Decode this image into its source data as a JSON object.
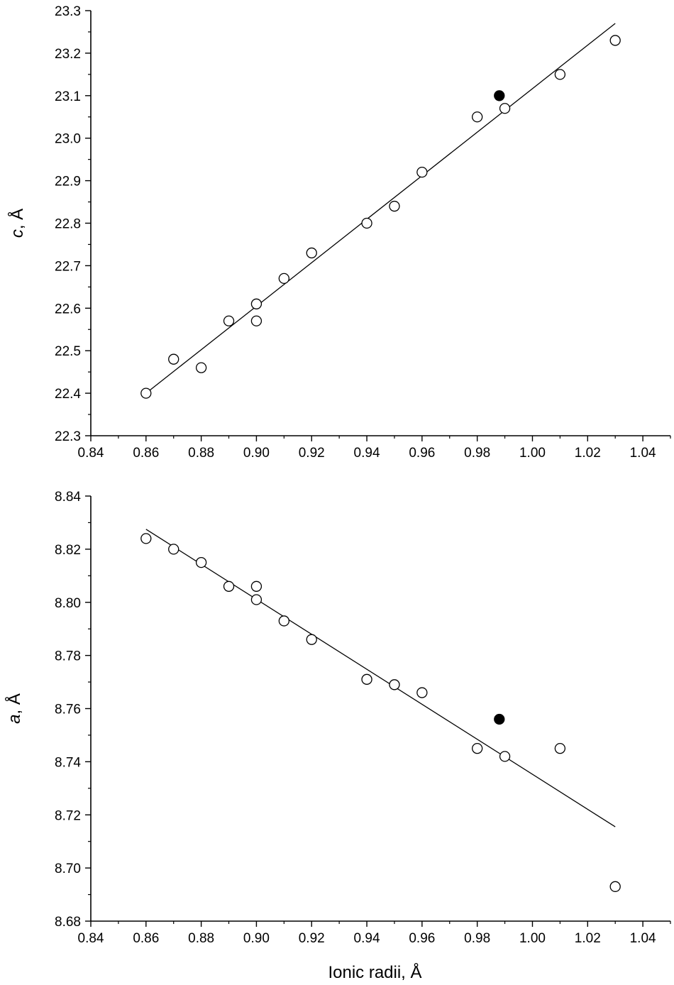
{
  "chart_data": [
    {
      "type": "scatter",
      "title": "",
      "ylabel_var": "c",
      "ylabel_unit": ", Å",
      "xlabel": "",
      "xlim": [
        0.84,
        1.05
      ],
      "ylim": [
        22.3,
        23.3
      ],
      "xticks": [
        0.84,
        0.86,
        0.88,
        0.9,
        0.92,
        0.94,
        0.96,
        0.98,
        1.0,
        1.02,
        1.04
      ],
      "xtick_labels": [
        "0.84",
        "0.86",
        "0.88",
        "0.90",
        "0.92",
        "0.94",
        "0.96",
        "0.98",
        "1.00",
        "1.02",
        "1.04"
      ],
      "yticks": [
        22.3,
        22.4,
        22.5,
        22.6,
        22.7,
        22.8,
        22.9,
        23.0,
        23.1,
        23.2,
        23.3
      ],
      "ytick_labels": [
        "22.3",
        "22.4",
        "22.5",
        "22.6",
        "22.7",
        "22.8",
        "22.9",
        "23.0",
        "23.1",
        "23.2",
        "23.3"
      ],
      "grid": false,
      "series": [
        {
          "marker": "open-circle",
          "x": [
            0.86,
            0.87,
            0.88,
            0.89,
            0.9,
            0.9,
            0.91,
            0.92,
            0.94,
            0.95,
            0.96,
            0.98,
            0.99,
            1.01,
            1.03
          ],
          "y": [
            22.4,
            22.48,
            22.46,
            22.57,
            22.61,
            22.57,
            22.67,
            22.73,
            22.8,
            22.84,
            22.92,
            23.05,
            23.07,
            23.15,
            23.23
          ]
        },
        {
          "marker": "filled-circle",
          "x": [
            0.988
          ],
          "y": [
            23.1
          ]
        }
      ],
      "fit_line": {
        "x": [
          0.86,
          1.03
        ],
        "y": [
          22.4,
          23.27
        ]
      }
    },
    {
      "type": "scatter",
      "title": "",
      "ylabel_var": "a",
      "ylabel_unit": ", Å",
      "xlabel": "Ionic radii, Å",
      "xlim": [
        0.84,
        1.05
      ],
      "ylim": [
        8.68,
        8.84
      ],
      "xticks": [
        0.84,
        0.86,
        0.88,
        0.9,
        0.92,
        0.94,
        0.96,
        0.98,
        1.0,
        1.02,
        1.04
      ],
      "xtick_labels": [
        "0.84",
        "0.86",
        "0.88",
        "0.90",
        "0.92",
        "0.94",
        "0.96",
        "0.98",
        "1.00",
        "1.02",
        "1.04"
      ],
      "yticks": [
        8.68,
        8.7,
        8.72,
        8.74,
        8.76,
        8.78,
        8.8,
        8.82,
        8.84
      ],
      "ytick_labels": [
        "8.68",
        "8.70",
        "8.72",
        "8.74",
        "8.76",
        "8.78",
        "8.80",
        "8.82",
        "8.84"
      ],
      "grid": false,
      "series": [
        {
          "marker": "open-circle",
          "x": [
            0.86,
            0.87,
            0.88,
            0.89,
            0.9,
            0.9,
            0.91,
            0.92,
            0.94,
            0.95,
            0.96,
            0.98,
            0.99,
            1.01,
            1.03
          ],
          "y": [
            8.824,
            8.82,
            8.815,
            8.806,
            8.806,
            8.801,
            8.793,
            8.786,
            8.771,
            8.769,
            8.766,
            8.745,
            8.742,
            8.745,
            8.693
          ]
        },
        {
          "marker": "filled-circle",
          "x": [
            0.988
          ],
          "y": [
            8.756
          ]
        }
      ],
      "fit_line": {
        "x": [
          0.86,
          1.03
        ],
        "y": [
          8.8275,
          8.7155
        ]
      }
    }
  ]
}
